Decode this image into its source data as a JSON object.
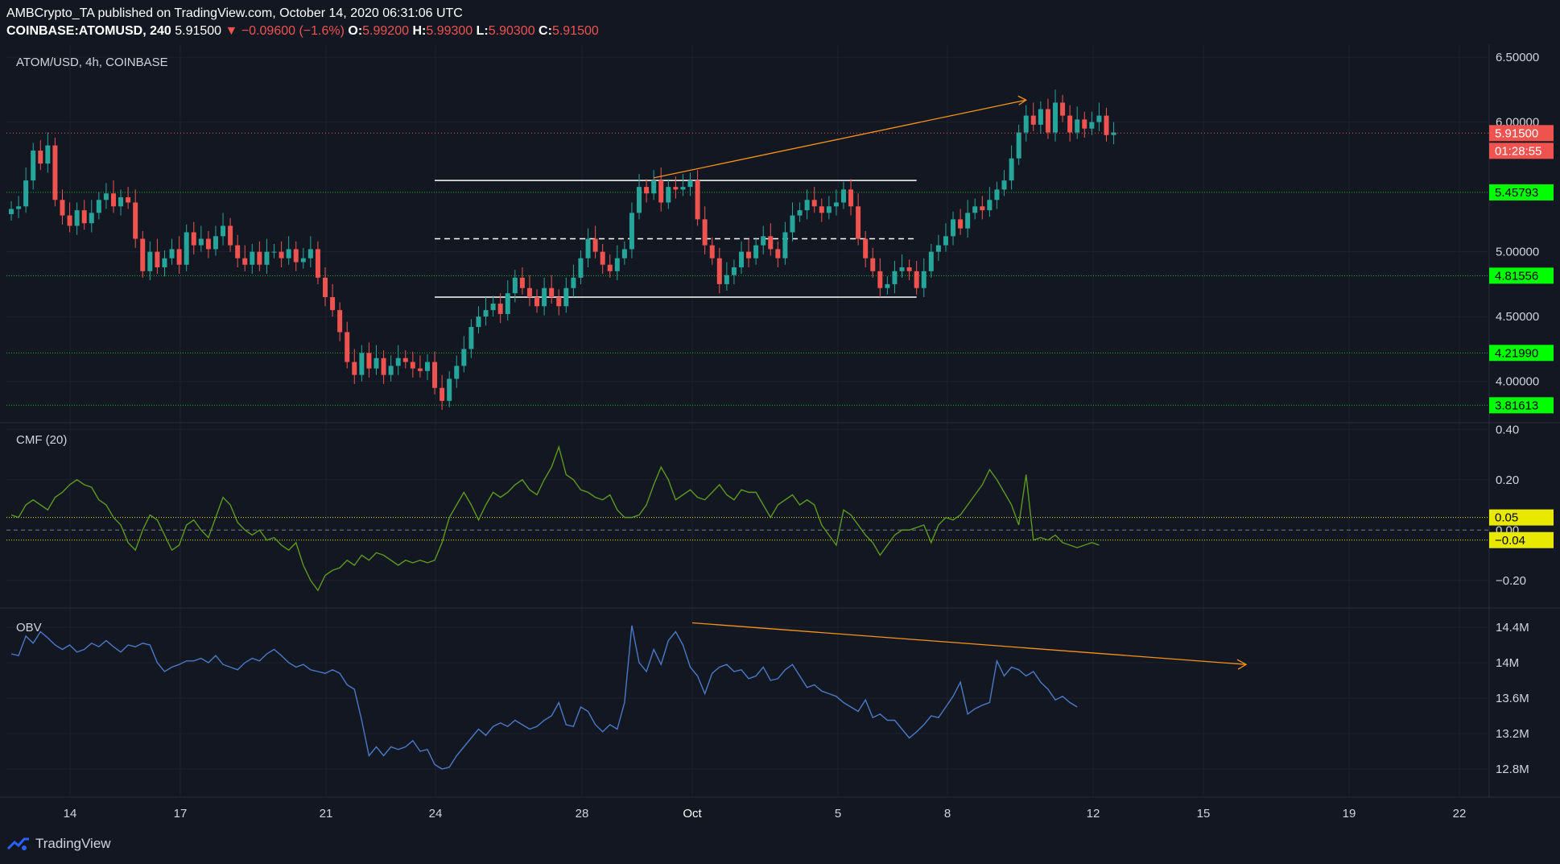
{
  "header": {
    "published_line": "AMBCrypto_TA published on TradingView.com, October 14, 2020 06:31:06 UTC",
    "symbol": "COINBASE:ATOMUSD, 240",
    "last": "5.91500",
    "change_arrow": "▼",
    "change": "−0.09600 (−1.6%)",
    "o_label": "O:",
    "o": "5.99200",
    "h_label": "H:",
    "h": "5.99300",
    "l_label": "L:",
    "l": "5.90300",
    "c_label": "C:",
    "c": "5.91500"
  },
  "footer": {
    "brand": "TradingView"
  },
  "colors": {
    "background": "#131722",
    "up": "#26a69a",
    "down": "#ef5350",
    "cmf": "#5b9a1f",
    "obv": "#4a79c6",
    "trend": "#f7931a",
    "level": "#13b21f",
    "level_label": "#00ff00",
    "cmf_level": "#e8e800"
  },
  "chart_data": [
    {
      "type": "candlestick",
      "title": "ATOM/USD, 4h, COINBASE",
      "ylim": [
        3.7,
        6.6
      ],
      "y_ticks": [
        "6.50000",
        "6.00000",
        "5.00000",
        "4.50000",
        "4.00000"
      ],
      "y_tick_values": [
        6.5,
        6.0,
        5.0,
        4.5,
        4.0
      ],
      "x_ticks": [
        "14",
        "17",
        "21",
        "24",
        "28",
        "Oct",
        "5",
        "8",
        "12",
        "15",
        "19",
        "22"
      ],
      "price_label": "5.91500",
      "countdown_label": "01:28:55",
      "horizontal_levels": [
        {
          "value": 5.45793,
          "label": "5.45793"
        },
        {
          "value": 4.81556,
          "label": "4.81556"
        },
        {
          "value": 4.2199,
          "label": "4.21990"
        },
        {
          "value": 3.81613,
          "label": "3.81613"
        }
      ],
      "range_lines": {
        "top": 5.55,
        "mid": 5.1,
        "bottom": 4.65
      },
      "closes": [
        5.33,
        5.35,
        5.55,
        5.78,
        5.68,
        5.82,
        5.4,
        5.28,
        5.2,
        5.32,
        5.22,
        5.3,
        5.4,
        5.45,
        5.35,
        5.42,
        5.38,
        5.1,
        4.85,
        5.0,
        4.88,
        4.95,
        5.02,
        4.9,
        5.15,
        5.05,
        5.1,
        5.02,
        5.12,
        5.2,
        5.05,
        4.95,
        4.9,
        5.0,
        4.9,
        5.0,
        5.0,
        4.95,
        5.02,
        4.92,
        4.95,
        5.02,
        4.8,
        4.65,
        4.55,
        4.38,
        4.15,
        4.05,
        4.22,
        4.1,
        4.18,
        4.05,
        4.12,
        4.18,
        4.15,
        4.1,
        4.08,
        4.15,
        3.95,
        3.85,
        4.02,
        4.12,
        4.25,
        4.42,
        4.5,
        4.55,
        4.6,
        4.52,
        4.68,
        4.8,
        4.72,
        4.65,
        4.58,
        4.72,
        4.65,
        4.58,
        4.72,
        4.8,
        4.95,
        5.1,
        5.0,
        4.9,
        4.85,
        4.95,
        5.02,
        5.3,
        5.5,
        5.45,
        5.55,
        5.38,
        5.5,
        5.48,
        5.5,
        5.55,
        5.25,
        5.05,
        4.95,
        4.75,
        4.82,
        4.88,
        5.0,
        4.95,
        5.05,
        5.12,
        5.02,
        4.95,
        5.15,
        5.28,
        5.32,
        5.4,
        5.35,
        5.3,
        5.35,
        5.38,
        5.48,
        5.35,
        5.1,
        4.95,
        4.85,
        4.72,
        4.75,
        4.85,
        4.88,
        4.85,
        4.72,
        4.85,
        5.0,
        5.05,
        5.12,
        5.25,
        5.18,
        5.3,
        5.35,
        5.32,
        5.4,
        5.48,
        5.55,
        5.72,
        5.92,
        6.05,
        5.98,
        6.1,
        5.92,
        6.15,
        6.05,
        5.92,
        6.02,
        5.95,
        6.0,
        6.05,
        5.9,
        5.92
      ]
    },
    {
      "type": "line",
      "title": "CMF (20)",
      "ylim": [
        -0.3,
        0.42
      ],
      "y_ticks": [
        "0.40",
        "0.20",
        "−0.20"
      ],
      "y_tick_values": [
        0.4,
        0.2,
        -0.2
      ],
      "zero_label": "0.00",
      "levels": [
        {
          "value": 0.05,
          "label": "0.05"
        },
        {
          "value": -0.04,
          "label": "−0.04"
        }
      ],
      "values": [
        0.06,
        0.05,
        0.1,
        0.12,
        0.1,
        0.08,
        0.13,
        0.15,
        0.18,
        0.2,
        0.18,
        0.17,
        0.12,
        0.1,
        0.05,
        0.02,
        -0.05,
        -0.08,
        0.0,
        0.06,
        0.04,
        -0.02,
        -0.08,
        -0.06,
        0.02,
        0.04,
        0.0,
        -0.03,
        0.05,
        0.13,
        0.1,
        0.03,
        0.0,
        -0.02,
        0.0,
        -0.04,
        -0.03,
        -0.06,
        -0.08,
        -0.05,
        -0.14,
        -0.2,
        -0.24,
        -0.18,
        -0.16,
        -0.15,
        -0.12,
        -0.14,
        -0.1,
        -0.12,
        -0.09,
        -0.1,
        -0.12,
        -0.14,
        -0.12,
        -0.13,
        -0.12,
        -0.13,
        -0.12,
        -0.05,
        0.05,
        0.1,
        0.15,
        0.1,
        0.04,
        0.1,
        0.15,
        0.13,
        0.15,
        0.18,
        0.2,
        0.16,
        0.14,
        0.2,
        0.25,
        0.33,
        0.22,
        0.2,
        0.16,
        0.15,
        0.13,
        0.12,
        0.14,
        0.08,
        0.05,
        0.05,
        0.06,
        0.1,
        0.18,
        0.25,
        0.2,
        0.12,
        0.14,
        0.16,
        0.13,
        0.12,
        0.15,
        0.18,
        0.14,
        0.12,
        0.16,
        0.15,
        0.15,
        0.1,
        0.05,
        0.1,
        0.12,
        0.14,
        0.1,
        0.12,
        0.1,
        0.02,
        -0.02,
        -0.06,
        0.08,
        0.06,
        0.02,
        -0.02,
        -0.05,
        -0.1,
        -0.06,
        -0.02,
        0.0,
        0.0,
        0.01,
        0.02,
        -0.05,
        0.02,
        0.05,
        0.04,
        0.06,
        0.1,
        0.14,
        0.18,
        0.24,
        0.2,
        0.15,
        0.1,
        0.02,
        0.22,
        -0.04,
        -0.03,
        -0.04,
        -0.02,
        -0.05,
        -0.06,
        -0.07,
        -0.06,
        -0.05,
        -0.06
      ]
    },
    {
      "type": "line",
      "title": "OBV",
      "ylim": [
        12.5,
        14.6
      ],
      "y_ticks": [
        "14.4M",
        "14M",
        "13.6M",
        "13.2M",
        "12.8M"
      ],
      "y_tick_values": [
        14.4,
        14.0,
        13.6,
        13.2,
        12.8
      ],
      "values": [
        14.1,
        14.08,
        14.3,
        14.22,
        14.35,
        14.28,
        14.2,
        14.15,
        14.2,
        14.12,
        14.15,
        14.22,
        14.18,
        14.25,
        14.18,
        14.12,
        14.2,
        14.18,
        14.22,
        14.2,
        14.0,
        13.9,
        13.95,
        13.98,
        14.02,
        14.02,
        14.05,
        14.0,
        14.08,
        13.98,
        13.95,
        13.92,
        14.0,
        14.05,
        14.02,
        14.1,
        14.15,
        14.08,
        14.0,
        13.95,
        13.98,
        13.92,
        13.9,
        13.88,
        13.92,
        13.88,
        13.75,
        13.7,
        13.35,
        12.95,
        13.05,
        12.95,
        13.05,
        13.02,
        13.05,
        13.12,
        13.0,
        13.02,
        12.85,
        12.8,
        12.82,
        12.95,
        13.05,
        13.15,
        13.25,
        13.18,
        13.28,
        13.32,
        13.28,
        13.35,
        13.3,
        13.25,
        13.28,
        13.35,
        13.4,
        13.55,
        13.3,
        13.28,
        13.5,
        13.45,
        13.3,
        13.22,
        13.3,
        13.25,
        13.55,
        14.42,
        14.0,
        13.9,
        14.15,
        13.98,
        14.25,
        14.35,
        14.2,
        13.95,
        13.85,
        13.65,
        13.88,
        13.95,
        13.98,
        13.9,
        13.92,
        13.82,
        13.85,
        13.95,
        13.8,
        13.82,
        13.92,
        13.98,
        13.85,
        13.72,
        13.75,
        13.68,
        13.65,
        13.62,
        13.55,
        13.5,
        13.45,
        13.58,
        13.38,
        13.42,
        13.35,
        13.35,
        13.25,
        13.15,
        13.22,
        13.3,
        13.4,
        13.38,
        13.5,
        13.62,
        13.78,
        13.42,
        13.48,
        13.52,
        13.55,
        14.02,
        13.85,
        13.95,
        13.92,
        13.85,
        13.9,
        13.78,
        13.7,
        13.58,
        13.62,
        13.55,
        13.5
      ]
    }
  ]
}
